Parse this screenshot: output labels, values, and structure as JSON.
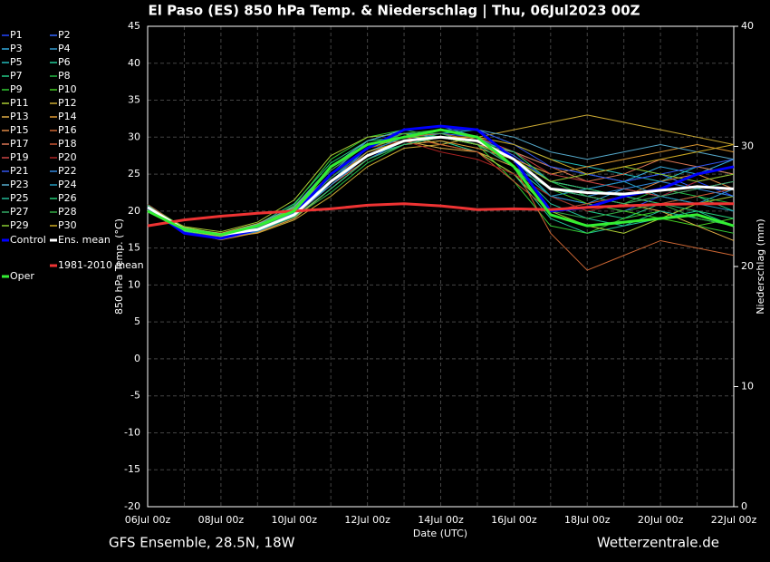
{
  "chart_data": {
    "type": "line",
    "title": "El Paso  (ES)  850 hPa Temp. & Niederschlag | Thu, 06Jul2023 00Z",
    "x_label": "Date (UTC)",
    "y_label": "850 hPa Temp. (°C)",
    "y2_label": "Niederschlag (mm)",
    "footer_left": "GFS Ensemble, 28.5N, 18W",
    "footer_right": "Wetterzentrale.de",
    "categories": [
      "06Jul 00z",
      null,
      "08Jul 00z",
      null,
      "10Jul 00z",
      null,
      "12Jul 00z",
      null,
      "14Jul 00z",
      null,
      "16Jul 00z",
      null,
      "18Jul 00z",
      null,
      "20Jul 00z",
      null,
      "22Jul 00z"
    ],
    "ylim": [
      -20,
      45
    ],
    "yticks": [
      -20,
      -15,
      -10,
      -5,
      0,
      5,
      10,
      15,
      20,
      25,
      30,
      35,
      40,
      45
    ],
    "y2lim": [
      0,
      40
    ],
    "y2ticks": [
      0,
      10,
      20,
      30,
      40
    ],
    "grid": true,
    "series": [
      {
        "name": "P1",
        "color": "#2244ff",
        "values": [
          20.5,
          17.3,
          16.5,
          17.8,
          20,
          24.5,
          28,
          30,
          31,
          30,
          26,
          22,
          21,
          20,
          22,
          24,
          22
        ]
      },
      {
        "name": "P2",
        "color": "#3366ff",
        "values": [
          20.8,
          17.5,
          16.2,
          17.2,
          19,
          23,
          27,
          29.5,
          30.5,
          30,
          27.5,
          24,
          23,
          24,
          25,
          23,
          24
        ]
      },
      {
        "name": "P3",
        "color": "#33aadd",
        "values": [
          20.6,
          17.8,
          16.8,
          18,
          20.5,
          26,
          29,
          30.5,
          30,
          29,
          28,
          26,
          25,
          24,
          26,
          25,
          27
        ]
      },
      {
        "name": "P4",
        "color": "#3399cc",
        "values": [
          20.4,
          17.1,
          16.4,
          17.5,
          19.5,
          25,
          29.5,
          31,
          31.5,
          30,
          27,
          22,
          21,
          23,
          22,
          21,
          23
        ]
      },
      {
        "name": "P5",
        "color": "#22bbbb",
        "values": [
          20.7,
          17.6,
          16.6,
          17.9,
          20.2,
          24,
          28.5,
          30,
          30.5,
          31,
          29,
          27,
          26,
          25,
          24,
          26,
          25
        ]
      },
      {
        "name": "P6",
        "color": "#22cc99",
        "values": [
          20.3,
          17.2,
          16.9,
          17.6,
          19.8,
          23.5,
          27.5,
          29,
          29.5,
          28,
          25,
          19,
          17,
          18,
          19,
          20,
          18
        ]
      },
      {
        "name": "P7",
        "color": "#22cc88",
        "values": [
          20.5,
          17.4,
          16.7,
          18.2,
          21,
          26.5,
          29.5,
          30,
          30,
          29,
          26,
          22,
          20,
          19,
          21,
          22,
          20
        ]
      },
      {
        "name": "P8",
        "color": "#22bb44",
        "values": [
          20.9,
          17.7,
          16.3,
          17.4,
          19.2,
          22.5,
          26.5,
          29,
          30,
          29.5,
          27,
          24,
          22,
          21,
          23,
          22,
          21
        ]
      },
      {
        "name": "P9",
        "color": "#33cc33",
        "values": [
          20.2,
          17,
          16.5,
          17.8,
          20.8,
          27,
          30,
          31,
          30,
          29,
          24,
          18,
          17,
          19,
          20,
          18,
          17
        ]
      },
      {
        "name": "P10",
        "color": "#44cc22",
        "values": [
          20.6,
          17.5,
          16.8,
          18,
          20,
          25,
          28.5,
          30,
          31,
          30,
          27,
          23,
          21,
          20,
          19,
          18,
          19
        ]
      },
      {
        "name": "P11",
        "color": "#aacc33",
        "values": [
          20.4,
          17.9,
          17.2,
          18.5,
          21.5,
          27.5,
          30,
          30.5,
          29,
          28,
          25,
          20,
          18,
          17,
          19,
          21,
          22
        ]
      },
      {
        "name": "P12",
        "color": "#ccaa33",
        "values": [
          20.7,
          17.3,
          16.4,
          17,
          18.8,
          22,
          26,
          28.5,
          29,
          30,
          31,
          32,
          33,
          32,
          31,
          30,
          29
        ]
      },
      {
        "name": "P13",
        "color": "#ddaa44",
        "values": [
          20.5,
          17.6,
          17,
          18.3,
          20.5,
          25.5,
          29,
          29.5,
          28.5,
          28,
          26,
          23,
          22,
          21,
          20,
          18,
          16
        ]
      },
      {
        "name": "P14",
        "color": "#dd9933",
        "values": [
          20.8,
          17.2,
          16.1,
          17.1,
          19,
          23,
          27,
          29,
          29.5,
          28.5,
          27,
          25,
          26,
          27,
          28,
          29,
          28
        ]
      },
      {
        "name": "P15",
        "color": "#dd8844",
        "values": [
          20.3,
          17.5,
          16.9,
          18.1,
          20.2,
          24.5,
          28,
          29.5,
          30,
          29,
          27,
          24,
          23,
          22,
          24,
          25,
          23
        ]
      },
      {
        "name": "P16",
        "color": "#cc6633",
        "values": [
          20.6,
          17.8,
          16.6,
          17.7,
          19.6,
          24,
          28,
          30,
          30.5,
          29.5,
          26,
          17,
          12,
          14,
          16,
          15,
          14
        ]
      },
      {
        "name": "P17",
        "color": "#dd7755",
        "values": [
          20.4,
          17.1,
          16.3,
          17.4,
          19.3,
          23.5,
          27,
          29,
          30,
          29,
          28,
          26,
          24,
          25,
          27,
          26,
          25
        ]
      },
      {
        "name": "P18",
        "color": "#cc5533",
        "values": [
          20.5,
          17.4,
          16.7,
          17.9,
          20,
          26,
          29,
          30,
          29,
          28,
          24,
          20,
          21,
          22,
          21,
          22,
          23
        ]
      },
      {
        "name": "P19",
        "color": "#cc4444",
        "values": [
          20.9,
          17.6,
          16.5,
          17.6,
          19.5,
          24,
          28,
          29.5,
          30,
          30,
          28,
          25,
          24,
          23,
          22,
          23,
          24
        ]
      },
      {
        "name": "P20",
        "color": "#aa2222",
        "values": [
          20.2,
          17.3,
          16.8,
          18,
          20.3,
          25,
          28.5,
          29.5,
          28,
          27,
          25,
          22,
          20,
          21,
          22,
          24,
          25
        ]
      },
      {
        "name": "P21",
        "color": "#3355ee",
        "values": [
          20.5,
          17.5,
          16.6,
          17.8,
          19.8,
          24.5,
          28,
          30,
          31,
          31,
          29,
          26,
          25,
          24,
          25,
          26,
          27
        ]
      },
      {
        "name": "P22",
        "color": "#3388dd",
        "values": [
          20.7,
          17.2,
          16.4,
          17.5,
          19.4,
          23.5,
          27.5,
          29.5,
          30,
          29,
          26,
          23,
          22,
          23,
          24,
          23,
          22
        ]
      },
      {
        "name": "P23",
        "color": "#55aacc",
        "values": [
          20.3,
          17.7,
          16.9,
          18.2,
          20.6,
          26,
          29.5,
          31,
          31.5,
          31,
          30,
          28,
          27,
          28,
          29,
          28,
          27
        ]
      },
      {
        "name": "P24",
        "color": "#2299bb",
        "values": [
          20.6,
          17.4,
          16.5,
          17.6,
          19.7,
          24,
          28,
          30,
          31,
          30,
          27,
          22,
          23,
          24,
          22,
          21,
          20
        ]
      },
      {
        "name": "P25",
        "color": "#22bb99",
        "values": [
          20.4,
          17.6,
          16.7,
          17.9,
          20.1,
          25,
          28.5,
          30,
          30,
          29,
          26,
          21,
          19,
          18,
          20,
          19,
          18
        ]
      },
      {
        "name": "P26",
        "color": "#22cc77",
        "values": [
          20.8,
          17.3,
          16.3,
          17.3,
          19.2,
          23,
          27,
          29,
          30,
          29.5,
          28,
          24,
          23,
          22,
          21,
          20,
          19
        ]
      },
      {
        "name": "P27",
        "color": "#33aa66",
        "values": [
          20.5,
          17.5,
          16.8,
          18,
          20.4,
          25.5,
          29,
          30.5,
          30.5,
          29,
          26,
          23,
          22,
          21,
          22,
          23,
          24
        ]
      },
      {
        "name": "P28",
        "color": "#33aa44",
        "values": [
          20.2,
          17.1,
          16.6,
          17.7,
          19.9,
          24.5,
          28.5,
          30.5,
          31,
          30,
          27,
          20,
          19,
          20,
          21,
          19,
          18
        ]
      },
      {
        "name": "P29",
        "color": "#88cc33",
        "values": [
          20.6,
          17.8,
          16.9,
          18.1,
          20.3,
          25,
          28.5,
          30,
          30,
          29,
          27,
          24,
          25,
          26,
          25,
          24,
          25
        ]
      },
      {
        "name": "P30",
        "color": "#ccaa22",
        "values": [
          20.4,
          17.4,
          16.5,
          17.6,
          19.6,
          24,
          28,
          29.5,
          30,
          30,
          29,
          27,
          25,
          26,
          27,
          28,
          29
        ]
      },
      {
        "name": "Control",
        "color": "#0000ff",
        "values": [
          20.5,
          17,
          16.3,
          17.5,
          19.5,
          25,
          28.5,
          31,
          31.5,
          31,
          27,
          20,
          20.5,
          22,
          23,
          25,
          26
        ]
      },
      {
        "name": "Ens. mean",
        "color": "#ffffff",
        "values": [
          20.5,
          17.5,
          16.8,
          17.5,
          19.5,
          24,
          27.5,
          29.5,
          30,
          29.5,
          27,
          23,
          22.5,
          22.3,
          22.8,
          23.3,
          23
        ]
      },
      {
        "name": "1981-2010 mean",
        "color": "#ee3333",
        "values": [
          18,
          18.8,
          19.3,
          19.7,
          20,
          20.3,
          20.8,
          21,
          20.7,
          20.2,
          20.3,
          20.2,
          20.5,
          20.7,
          20.9,
          21,
          21
        ]
      },
      {
        "name": "Oper",
        "color": "#33ee33",
        "values": [
          20,
          17.5,
          16.8,
          18,
          20,
          26,
          29,
          30,
          31,
          30,
          26,
          19.5,
          18,
          18.5,
          19,
          19.5,
          18
        ]
      }
    ]
  }
}
